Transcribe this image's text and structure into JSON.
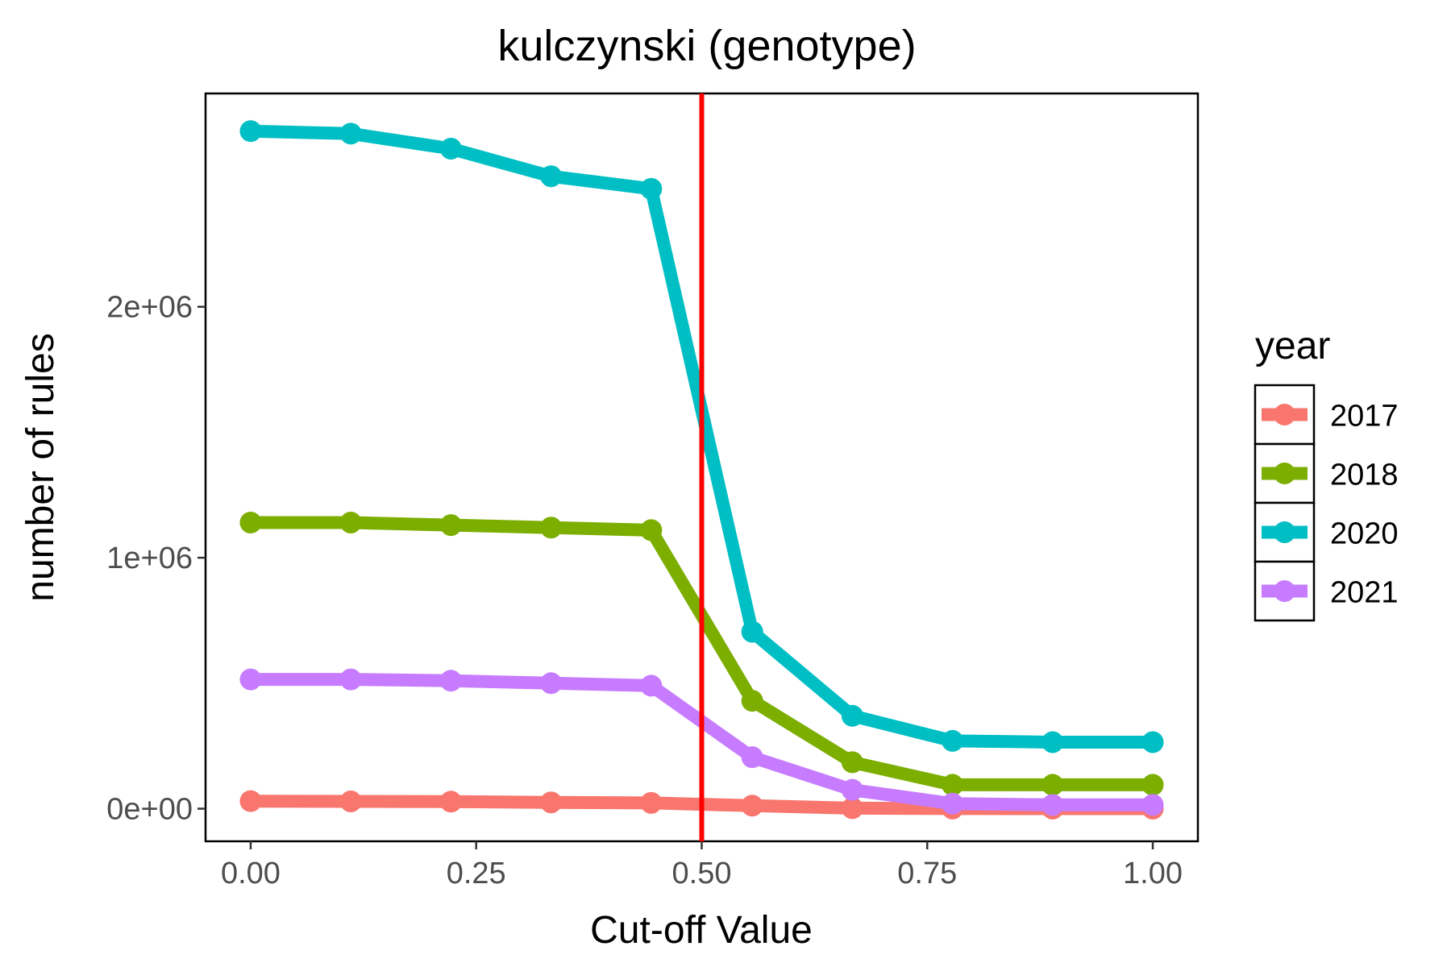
{
  "chart_data": {
    "type": "line",
    "title": "kulczynski (genotype)",
    "xlabel": "Cut-off Value",
    "ylabel": "number of rules",
    "xlim": [
      -0.05,
      1.05
    ],
    "ylim": [
      -130000,
      2850000
    ],
    "x_ticks": [
      0,
      0.25,
      0.5,
      0.75,
      1
    ],
    "x_tick_labels": [
      "0.00",
      "0.25",
      "0.50",
      "0.75",
      "1.00"
    ],
    "y_ticks": [
      0,
      1000000,
      2000000
    ],
    "y_tick_labels": [
      "0e+00",
      "1e+06",
      "2e+06"
    ],
    "grid": false,
    "legend": {
      "title": "year",
      "position": "right"
    },
    "reference_line": {
      "x": 0.5,
      "color": "#FF0000"
    },
    "x": [
      0,
      0.111,
      0.222,
      0.333,
      0.444,
      0.556,
      0.667,
      0.778,
      0.889,
      1.0
    ],
    "series": [
      {
        "name": "2017",
        "color": "#F8766D",
        "values": [
          30000,
          29000,
          28000,
          25000,
          23000,
          12000,
          2000,
          500,
          200,
          100
        ]
      },
      {
        "name": "2018",
        "color": "#7CAE00",
        "values": [
          1140000,
          1140000,
          1130000,
          1120000,
          1110000,
          430000,
          185000,
          95000,
          95000,
          95000
        ]
      },
      {
        "name": "2020",
        "color": "#00BFC4",
        "values": [
          2700000,
          2690000,
          2630000,
          2520000,
          2470000,
          705000,
          370000,
          270000,
          265000,
          265000
        ]
      },
      {
        "name": "2021",
        "color": "#C77CFF",
        "values": [
          515000,
          515000,
          510000,
          500000,
          490000,
          205000,
          75000,
          20000,
          15000,
          15000
        ]
      }
    ]
  }
}
